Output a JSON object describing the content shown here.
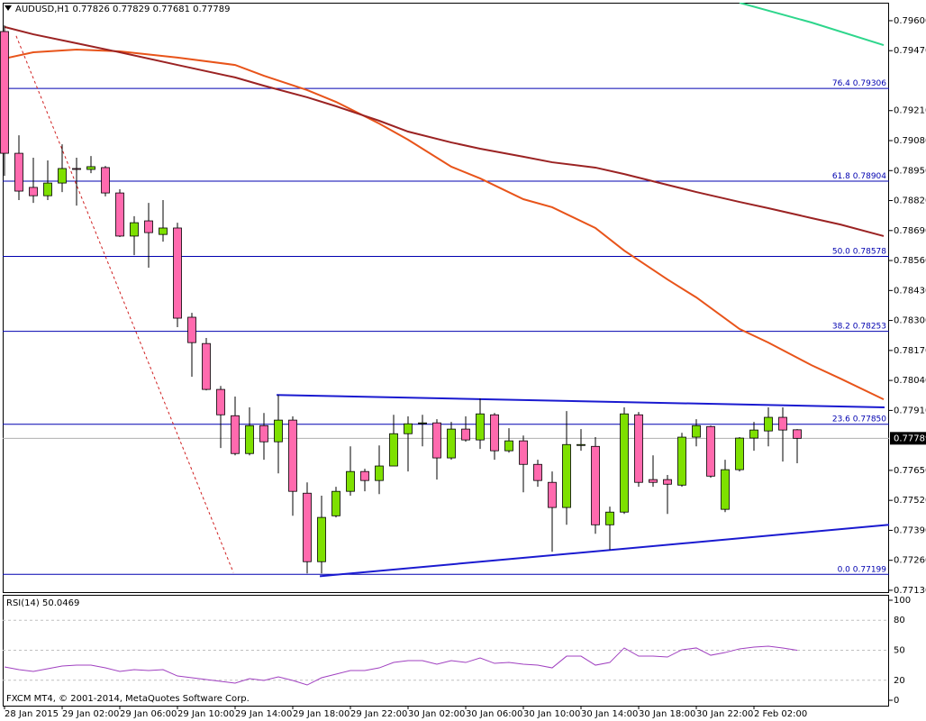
{
  "header": {
    "symbol": "AUDUSD,H1"
  },
  "watermark": "FXCM MT4, © 2001-2014, MetaQuotes Software Corp.",
  "chart_data": [
    {
      "type": "candlestick",
      "up_color": "#7ee000",
      "down_color": "#ff6aae",
      "open": [
        0.79553,
        0.79025,
        0.78877,
        0.78841,
        0.78896,
        0.78959,
        0.78955,
        0.78963,
        0.78853,
        0.78666,
        0.78732,
        0.78673,
        0.78701,
        0.78314,
        0.782,
        0.78001,
        0.77887,
        0.77723,
        0.77844,
        0.77774,
        0.77868,
        0.77551,
        0.77254,
        0.77453,
        0.77559,
        0.77645,
        0.77606,
        0.77669,
        0.77809,
        0.77852,
        0.77856,
        0.77704,
        0.77829,
        0.77782,
        0.77891,
        0.77735,
        0.77778,
        0.77676,
        0.77598,
        0.77489,
        0.77758,
        0.77754,
        0.77414,
        0.77469,
        0.77891,
        0.7761,
        0.7761,
        0.77586,
        0.77794,
        0.7784,
        0.77481,
        0.77653,
        0.7779,
        0.77821,
        0.7788,
        0.77826
      ],
      "high": [
        0.7958,
        0.79103,
        0.79006,
        0.78994,
        0.79064,
        0.79006,
        0.79013,
        0.7897,
        0.78869,
        0.78752,
        0.7881,
        0.78822,
        0.78724,
        0.78333,
        0.78224,
        0.78016,
        0.7797,
        0.77923,
        0.77899,
        0.77977,
        0.77884,
        0.77598,
        0.7754,
        0.77579,
        0.77754,
        0.77657,
        0.77758,
        0.77891,
        0.77884,
        0.77891,
        0.77872,
        0.7786,
        0.77884,
        0.77962,
        0.77899,
        0.77833,
        0.77801,
        0.77696,
        0.77645,
        0.77907,
        0.77829,
        0.77794,
        0.77493,
        0.77923,
        0.77903,
        0.77715,
        0.7763,
        0.77813,
        0.77872,
        0.77844,
        0.77696,
        0.77794,
        0.7786,
        0.77923,
        0.77923,
        0.77829
      ],
      "low": [
        0.78927,
        0.78822,
        0.7881,
        0.78822,
        0.78857,
        0.78798,
        0.78939,
        0.78838,
        0.78662,
        0.78583,
        0.78529,
        0.78642,
        0.78271,
        0.78056,
        0.77997,
        0.77747,
        0.77715,
        0.77715,
        0.77696,
        0.77637,
        0.77453,
        0.77203,
        0.77203,
        0.77446,
        0.7754,
        0.77559,
        0.77547,
        0.77669,
        0.77645,
        0.77754,
        0.7761,
        0.77696,
        0.77774,
        0.77743,
        0.77696,
        0.77727,
        0.77555,
        0.77579,
        0.77297,
        0.77414,
        0.77735,
        0.77375,
        0.77305,
        0.77461,
        0.77579,
        0.77579,
        0.77461,
        0.77579,
        0.77754,
        0.77618,
        0.77469,
        0.77645,
        0.77735,
        0.77754,
        0.77688,
        0.77681
      ],
      "close": [
        0.79025,
        0.78861,
        0.78841,
        0.78896,
        0.78959,
        0.78955,
        0.78967,
        0.78853,
        0.78666,
        0.78724,
        0.78681,
        0.78701,
        0.7831,
        0.78204,
        0.78001,
        0.77891,
        0.77723,
        0.77844,
        0.77774,
        0.77868,
        0.77559,
        0.77254,
        0.77446,
        0.77559,
        0.77645,
        0.77606,
        0.77669,
        0.77809,
        0.77852,
        0.77856,
        0.77704,
        0.77829,
        0.77782,
        0.77895,
        0.77735,
        0.77778,
        0.77676,
        0.77606,
        0.77489,
        0.77762,
        0.77762,
        0.77414,
        0.77469,
        0.77895,
        0.77598,
        0.77598,
        0.7759,
        0.77794,
        0.77844,
        0.77625,
        0.77653,
        0.7779,
        0.77825,
        0.7788,
        0.77825,
        0.77789
      ],
      "xlim": [
        -0.125,
        61.375
      ],
      "xticks": [
        {
          "value": 0,
          "label": "28 Jan 2015"
        },
        {
          "value": 4,
          "label": "29 Jan 02:00"
        },
        {
          "value": 8,
          "label": "29 Jan 06:00"
        },
        {
          "value": 12,
          "label": "29 Jan 10:00"
        },
        {
          "value": 16,
          "label": "29 Jan 14:00"
        },
        {
          "value": 20,
          "label": "29 Jan 18:00"
        },
        {
          "value": 24,
          "label": "29 Jan 22:00"
        },
        {
          "value": 28,
          "label": "30 Jan 02:00"
        },
        {
          "value": 32,
          "label": "30 Jan 06:00"
        },
        {
          "value": 36,
          "label": "30 Jan 10:00"
        },
        {
          "value": 40,
          "label": "30 Jan 14:00"
        },
        {
          "value": 44,
          "label": "30 Jan 18:00"
        },
        {
          "value": 48,
          "label": "30 Jan 22:00"
        },
        {
          "value": 52,
          "label": "2 Feb 02:00"
        }
      ],
      "ylim": [
        0.77122,
        0.79678
      ],
      "yticks": [
        {
          "value": 0.796,
          "label": "0.79600"
        },
        {
          "value": 0.7947,
          "label": "0.79470"
        },
        {
          "value": 0.7921,
          "label": "0.79210"
        },
        {
          "value": 0.7908,
          "label": "0.79080"
        },
        {
          "value": 0.7895,
          "label": "0.78950"
        },
        {
          "value": 0.7882,
          "label": "0.78820"
        },
        {
          "value": 0.7869,
          "label": "0.78690"
        },
        {
          "value": 0.7856,
          "label": "0.78560"
        },
        {
          "value": 0.7843,
          "label": "0.78430"
        },
        {
          "value": 0.783,
          "label": "0.78300"
        },
        {
          "value": 0.7817,
          "label": "0.78170"
        },
        {
          "value": 0.7804,
          "label": "0.78040"
        },
        {
          "value": 0.7791,
          "label": "0.77910"
        },
        {
          "value": 0.7765,
          "label": "0.77650"
        },
        {
          "value": 0.7752,
          "label": "0.77520"
        },
        {
          "value": 0.7739,
          "label": "0.77390"
        },
        {
          "value": 0.7726,
          "label": "0.77260"
        },
        {
          "value": 0.7713,
          "label": "0.77130"
        }
      ],
      "ma_lines": [
        {
          "color": "#e8541a",
          "x": [
            0,
            2,
            5,
            8,
            12,
            16,
            18,
            21,
            23,
            26,
            28,
            31,
            33,
            36,
            38,
            41,
            43,
            46,
            48,
            51,
            53,
            56,
            58,
            61
          ],
          "values": [
            0.79436,
            0.79463,
            0.79475,
            0.79467,
            0.7944,
            0.79408,
            0.79361,
            0.79299,
            0.79248,
            0.79154,
            0.79084,
            0.78967,
            0.78916,
            0.78826,
            0.78791,
            0.78701,
            0.78603,
            0.78478,
            0.784,
            0.78263,
            0.78204,
            0.78106,
            0.78048,
            0.77958
          ]
        },
        {
          "color": "#9b2323",
          "x": [
            0,
            2,
            5,
            8,
            12,
            16,
            18,
            21,
            23,
            26,
            28,
            31,
            33,
            36,
            38,
            41,
            43,
            46,
            48,
            51,
            53,
            56,
            58,
            61
          ],
          "values": [
            0.79573,
            0.79541,
            0.79502,
            0.79463,
            0.79408,
            0.79354,
            0.79318,
            0.79268,
            0.79229,
            0.79166,
            0.79119,
            0.79072,
            0.79045,
            0.7901,
            0.78986,
            0.78963,
            0.78935,
            0.78888,
            0.78857,
            0.78814,
            0.78787,
            0.78744,
            0.78716,
            0.78666
          ]
        },
        {
          "color": "#2ed68c",
          "x": [
            51,
            56,
            61
          ],
          "values": [
            0.79678,
            0.79592,
            0.79494
          ]
        }
      ],
      "trendlines": [
        {
          "color": "#d02020",
          "dash": true,
          "x": [
            0.81,
            15.88
          ],
          "values": [
            0.79534,
            0.77207
          ]
        },
        {
          "color": "#1a1ad0",
          "dash": false,
          "x": [
            18.88,
            61.06
          ],
          "values": [
            0.77977,
            0.77923
          ]
        },
        {
          "color": "#1a1ad0",
          "dash": false,
          "x": [
            21.88,
            61.38
          ],
          "values": [
            0.77191,
            0.77414
          ]
        }
      ],
      "fib_color": "#0000b0",
      "fib_levels": [
        {
          "ratio": "76.4",
          "price": {
            "value": 0.79306,
            "label": "0.79306"
          }
        },
        {
          "ratio": "61.8",
          "price": {
            "value": 0.78904,
            "label": "0.78904"
          }
        },
        {
          "ratio": "50.0",
          "price": {
            "value": 0.78578,
            "label": "0.78578"
          }
        },
        {
          "ratio": "38.2",
          "price": {
            "value": 0.78253,
            "label": "0.78253"
          }
        },
        {
          "ratio": "23.6",
          "price": {
            "value": 0.7785,
            "label": "0.77850"
          }
        },
        {
          "ratio": "0.0",
          "price": {
            "value": 0.77199,
            "label": "0.77199"
          }
        }
      ]
    },
    {
      "type": "line",
      "title": "RSI(14)",
      "color": "#a040c0",
      "values": [
        33.3,
        30.6,
        28.8,
        31.5,
        34.2,
        35.1,
        35.1,
        32.4,
        28.8,
        30.6,
        29.7,
        30.6,
        24.3,
        22.5,
        20.7,
        18.9,
        17.1,
        21.6,
        19.8,
        23.4,
        19.8,
        15.3,
        22.5,
        26.1,
        29.7,
        29.7,
        32.4,
        37.8,
        39.6,
        39.6,
        36.0,
        39.6,
        37.8,
        42.3,
        36.9,
        37.8,
        36.0,
        35.1,
        32.4,
        44.1,
        44.1,
        35.1,
        37.8,
        52.3,
        44.1,
        44.1,
        43.2,
        50.5,
        52.3,
        45.0,
        47.7,
        51.4,
        53.2,
        54.1,
        52.3,
        50.0469
      ],
      "ylim": [
        -5.4,
        104.5
      ],
      "yticks": [
        100,
        80,
        50,
        20,
        0
      ]
    }
  ]
}
